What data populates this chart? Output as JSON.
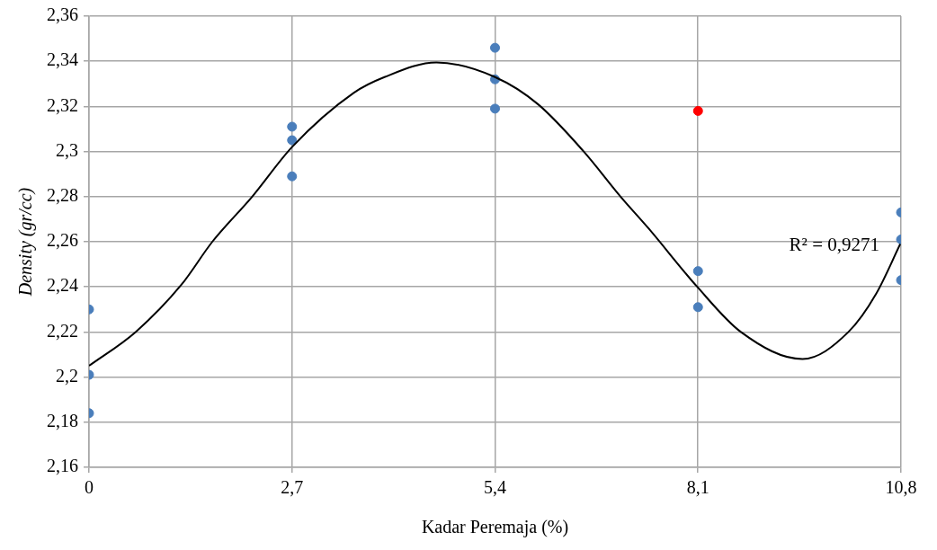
{
  "chart_data": {
    "type": "scatter",
    "xlabel": "Kadar Peremaja (%)",
    "ylabel": "Density (gr/cc)",
    "grid": true,
    "legend": false,
    "marker": "circle",
    "xlim": [
      0,
      10.8
    ],
    "xticks": [
      0,
      {
        "value": 2.7,
        "label": "2,7"
      },
      {
        "value": 5.4,
        "label": "5,4"
      },
      {
        "value": 8.1,
        "label": "8,1"
      },
      {
        "value": 10.8,
        "label": "10,8"
      }
    ],
    "ylim": [
      2.16,
      2.36
    ],
    "yticks": [
      {
        "value": 2.16,
        "label": "2,16"
      },
      {
        "value": 2.18,
        "label": "2,18"
      },
      {
        "value": 2.2,
        "label": "2,2"
      },
      {
        "value": 2.22,
        "label": "2,22"
      },
      {
        "value": 2.24,
        "label": "2,24"
      },
      {
        "value": 2.26,
        "label": "2,26"
      },
      {
        "value": 2.28,
        "label": "2,28"
      },
      {
        "value": 2.3,
        "label": "2,3"
      },
      {
        "value": 2.32,
        "label": "2,32"
      },
      {
        "value": 2.34,
        "label": "2,34"
      },
      {
        "value": 2.36,
        "label": "2,36"
      }
    ],
    "series": [
      {
        "type": "scatter",
        "x": [
          0,
          0,
          0,
          2.7,
          2.7,
          2.7,
          5.4,
          5.4,
          5.4,
          8.1,
          8.1,
          8.1,
          10.8,
          10.8,
          10.8
        ],
        "values": [
          2.23,
          2.201,
          2.184,
          2.311,
          2.305,
          2.289,
          2.346,
          2.332,
          2.319,
          2.318,
          2.247,
          2.231,
          2.273,
          2.261,
          2.243
        ],
        "colors": [
          "#4a7ebb",
          "#4a7ebb",
          "#4a7ebb",
          "#4a7ebb",
          "#4a7ebb",
          "#4a7ebb",
          "#4a7ebb",
          "#4a7ebb",
          "#4a7ebb",
          "#ff0000",
          "#4a7ebb",
          "#4a7ebb",
          "#4a7ebb",
          "#4a7ebb",
          "#4a7ebb"
        ]
      },
      {
        "type": "line",
        "color": "#000000",
        "marker": "none",
        "line_style": "solid",
        "x": [
          0,
          0.62,
          1.23,
          1.64,
          2.17,
          2.7,
          3.52,
          3.93,
          4.62,
          5.4,
          5.97,
          6.58,
          7.07,
          7.44,
          8.09,
          8.67,
          9.49,
          10.1,
          10.47,
          10.79
        ],
        "values": [
          2.205,
          2.22,
          2.241,
          2.26,
          2.28,
          2.302,
          2.326,
          2.333,
          2.3395,
          2.333,
          2.321,
          2.3,
          2.28,
          2.266,
          2.24,
          2.22,
          2.208,
          2.22,
          2.237,
          2.259
        ]
      }
    ],
    "annotations": [
      {
        "text": "R² = 0,9271",
        "x": 10.8,
        "y": 2.26
      }
    ]
  }
}
